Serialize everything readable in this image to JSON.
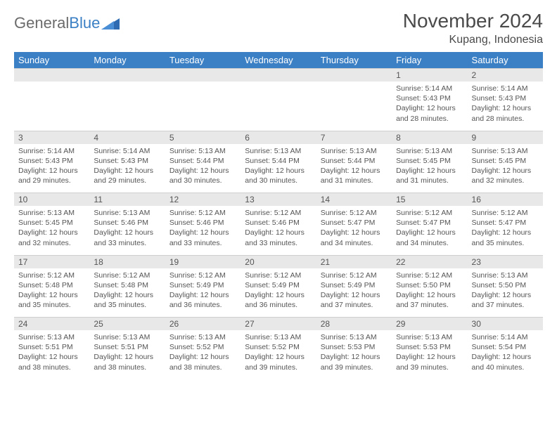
{
  "logo": {
    "text_gray": "General",
    "text_blue": "Blue"
  },
  "title": "November 2024",
  "location": "Kupang, Indonesia",
  "weekdays": [
    "Sunday",
    "Monday",
    "Tuesday",
    "Wednesday",
    "Thursday",
    "Friday",
    "Saturday"
  ],
  "colors": {
    "header_bg": "#3b7fc4",
    "header_text": "#ffffff",
    "daynum_bg": "#e8e8e8",
    "text": "#555555",
    "logo_gray": "#6b6b6b",
    "logo_blue": "#3b7fc4"
  },
  "weeks": [
    [
      null,
      null,
      null,
      null,
      null,
      {
        "n": "1",
        "sunrise": "5:14 AM",
        "sunset": "5:43 PM",
        "daylight": "12 hours and 28 minutes."
      },
      {
        "n": "2",
        "sunrise": "5:14 AM",
        "sunset": "5:43 PM",
        "daylight": "12 hours and 28 minutes."
      }
    ],
    [
      {
        "n": "3",
        "sunrise": "5:14 AM",
        "sunset": "5:43 PM",
        "daylight": "12 hours and 29 minutes."
      },
      {
        "n": "4",
        "sunrise": "5:14 AM",
        "sunset": "5:43 PM",
        "daylight": "12 hours and 29 minutes."
      },
      {
        "n": "5",
        "sunrise": "5:13 AM",
        "sunset": "5:44 PM",
        "daylight": "12 hours and 30 minutes."
      },
      {
        "n": "6",
        "sunrise": "5:13 AM",
        "sunset": "5:44 PM",
        "daylight": "12 hours and 30 minutes."
      },
      {
        "n": "7",
        "sunrise": "5:13 AM",
        "sunset": "5:44 PM",
        "daylight": "12 hours and 31 minutes."
      },
      {
        "n": "8",
        "sunrise": "5:13 AM",
        "sunset": "5:45 PM",
        "daylight": "12 hours and 31 minutes."
      },
      {
        "n": "9",
        "sunrise": "5:13 AM",
        "sunset": "5:45 PM",
        "daylight": "12 hours and 32 minutes."
      }
    ],
    [
      {
        "n": "10",
        "sunrise": "5:13 AM",
        "sunset": "5:45 PM",
        "daylight": "12 hours and 32 minutes."
      },
      {
        "n": "11",
        "sunrise": "5:13 AM",
        "sunset": "5:46 PM",
        "daylight": "12 hours and 33 minutes."
      },
      {
        "n": "12",
        "sunrise": "5:12 AM",
        "sunset": "5:46 PM",
        "daylight": "12 hours and 33 minutes."
      },
      {
        "n": "13",
        "sunrise": "5:12 AM",
        "sunset": "5:46 PM",
        "daylight": "12 hours and 33 minutes."
      },
      {
        "n": "14",
        "sunrise": "5:12 AM",
        "sunset": "5:47 PM",
        "daylight": "12 hours and 34 minutes."
      },
      {
        "n": "15",
        "sunrise": "5:12 AM",
        "sunset": "5:47 PM",
        "daylight": "12 hours and 34 minutes."
      },
      {
        "n": "16",
        "sunrise": "5:12 AM",
        "sunset": "5:47 PM",
        "daylight": "12 hours and 35 minutes."
      }
    ],
    [
      {
        "n": "17",
        "sunrise": "5:12 AM",
        "sunset": "5:48 PM",
        "daylight": "12 hours and 35 minutes."
      },
      {
        "n": "18",
        "sunrise": "5:12 AM",
        "sunset": "5:48 PM",
        "daylight": "12 hours and 35 minutes."
      },
      {
        "n": "19",
        "sunrise": "5:12 AM",
        "sunset": "5:49 PM",
        "daylight": "12 hours and 36 minutes."
      },
      {
        "n": "20",
        "sunrise": "5:12 AM",
        "sunset": "5:49 PM",
        "daylight": "12 hours and 36 minutes."
      },
      {
        "n": "21",
        "sunrise": "5:12 AM",
        "sunset": "5:49 PM",
        "daylight": "12 hours and 37 minutes."
      },
      {
        "n": "22",
        "sunrise": "5:12 AM",
        "sunset": "5:50 PM",
        "daylight": "12 hours and 37 minutes."
      },
      {
        "n": "23",
        "sunrise": "5:13 AM",
        "sunset": "5:50 PM",
        "daylight": "12 hours and 37 minutes."
      }
    ],
    [
      {
        "n": "24",
        "sunrise": "5:13 AM",
        "sunset": "5:51 PM",
        "daylight": "12 hours and 38 minutes."
      },
      {
        "n": "25",
        "sunrise": "5:13 AM",
        "sunset": "5:51 PM",
        "daylight": "12 hours and 38 minutes."
      },
      {
        "n": "26",
        "sunrise": "5:13 AM",
        "sunset": "5:52 PM",
        "daylight": "12 hours and 38 minutes."
      },
      {
        "n": "27",
        "sunrise": "5:13 AM",
        "sunset": "5:52 PM",
        "daylight": "12 hours and 39 minutes."
      },
      {
        "n": "28",
        "sunrise": "5:13 AM",
        "sunset": "5:53 PM",
        "daylight": "12 hours and 39 minutes."
      },
      {
        "n": "29",
        "sunrise": "5:13 AM",
        "sunset": "5:53 PM",
        "daylight": "12 hours and 39 minutes."
      },
      {
        "n": "30",
        "sunrise": "5:14 AM",
        "sunset": "5:54 PM",
        "daylight": "12 hours and 40 minutes."
      }
    ]
  ],
  "labels": {
    "sunrise": "Sunrise:",
    "sunset": "Sunset:",
    "daylight": "Daylight:"
  }
}
